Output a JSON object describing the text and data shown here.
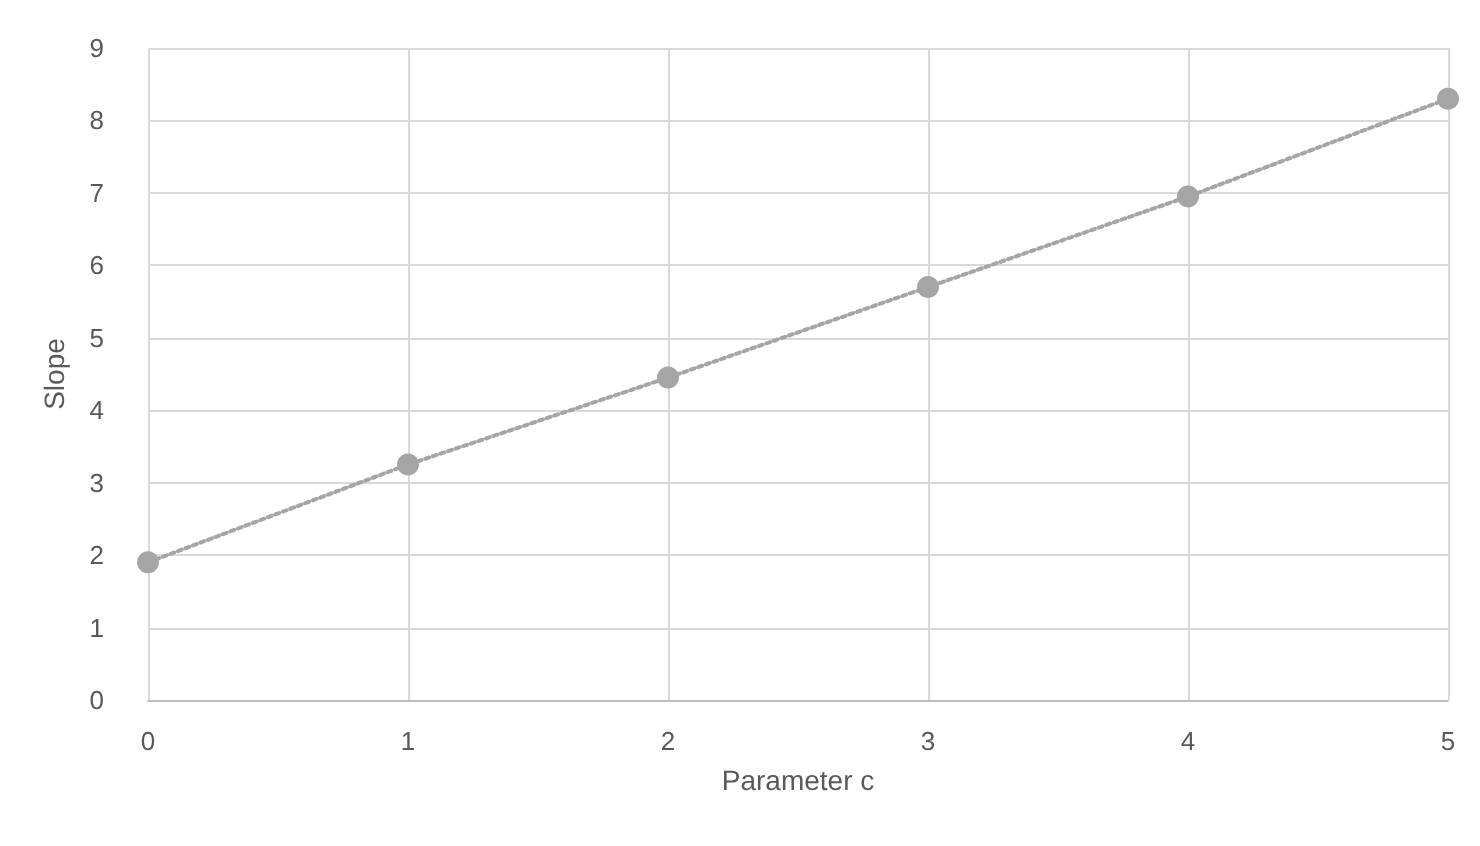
{
  "chart_data": {
    "type": "line",
    "xlabel": "Parameter c",
    "ylabel": "Slope",
    "x": [
      0,
      1,
      2,
      3,
      4,
      5
    ],
    "series": [
      {
        "color": "#a5a5a5",
        "values": [
          1.9,
          3.25,
          4.45,
          5.7,
          6.95,
          8.3
        ]
      }
    ],
    "xlim": [
      0,
      5
    ],
    "xticks": [
      0,
      1,
      2,
      3,
      4,
      5
    ],
    "ylim": [
      0,
      9
    ],
    "yticks": [
      0,
      1,
      2,
      3,
      4,
      5,
      6,
      7,
      8,
      9
    ],
    "grid": true,
    "marker": "circle",
    "line_style": "dotted"
  }
}
